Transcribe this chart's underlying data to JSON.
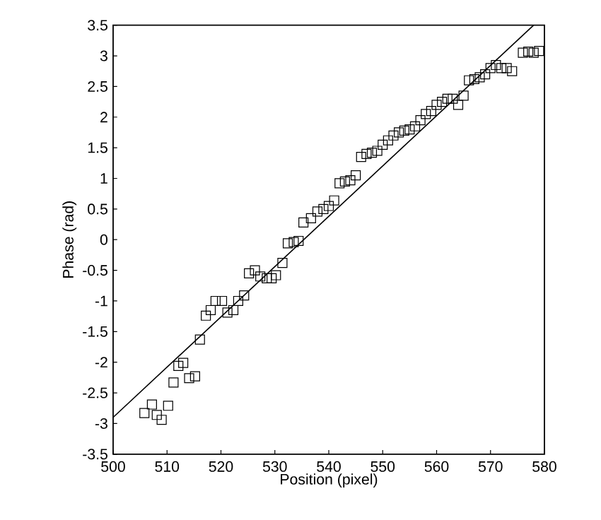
{
  "chart_data": {
    "type": "scatter",
    "xlabel": "Position (pixel)",
    "ylabel": "Phase (rad)",
    "xlim": [
      500,
      580
    ],
    "xticks": [
      500,
      510,
      520,
      530,
      540,
      550,
      560,
      570,
      580
    ],
    "ylim": [
      -3.5,
      3.5
    ],
    "yticks": [
      -3.5,
      -3,
      -2.5,
      -2,
      -1.5,
      -1,
      -0.5,
      0,
      0.5,
      1,
      1.5,
      2,
      2.5,
      3,
      3.5
    ],
    "grid": false,
    "series": [
      {
        "marker": "square",
        "color": "#000000",
        "x": [
          505.8,
          507.2,
          508.1,
          509,
          510.2,
          511.2,
          512.1,
          513,
          514.1,
          515.2,
          516.1,
          517.2,
          518.1,
          519,
          520.2,
          521.2,
          522.3,
          523.2,
          524.3,
          525.2,
          526.3,
          527.3,
          528.5,
          529.4,
          530.2,
          531.4,
          532.4,
          533.5,
          534.4,
          535.3,
          536.7,
          537.9,
          539,
          540,
          541,
          542,
          543,
          544,
          545,
          546,
          547,
          548,
          549,
          550,
          551,
          552,
          553,
          554,
          555,
          556,
          557,
          558,
          559,
          560,
          561,
          562,
          563,
          564,
          565,
          566,
          567,
          568,
          569,
          570,
          571,
          572,
          573,
          574,
          576,
          577,
          578,
          579
        ],
        "values": [
          -2.83,
          -2.69,
          -2.86,
          -2.94,
          -2.71,
          -2.33,
          -2.06,
          -2.01,
          -2.26,
          -2.23,
          -1.63,
          -1.24,
          -1.15,
          -1.0,
          -1.0,
          -1.19,
          -1.15,
          -1.0,
          -0.91,
          -0.55,
          -0.5,
          -0.6,
          -0.63,
          -0.63,
          -0.58,
          -0.38,
          -0.06,
          -0.04,
          -0.02,
          0.28,
          0.35,
          0.46,
          0.5,
          0.55,
          0.64,
          0.92,
          0.95,
          0.97,
          1.05,
          1.35,
          1.4,
          1.42,
          1.45,
          1.55,
          1.62,
          1.7,
          1.75,
          1.78,
          1.8,
          1.85,
          1.95,
          2.05,
          2.1,
          2.2,
          2.25,
          2.3,
          2.3,
          2.2,
          2.35,
          2.6,
          2.62,
          2.65,
          2.7,
          2.8,
          2.85,
          2.8,
          2.8,
          2.75,
          3.05,
          3.07,
          3.05,
          3.08
        ]
      },
      {
        "type": "line",
        "marker": "none",
        "line_style": "solid",
        "color": "#000000",
        "x": [
          500,
          578
        ],
        "values": [
          -2.9,
          3.5
        ]
      }
    ]
  }
}
